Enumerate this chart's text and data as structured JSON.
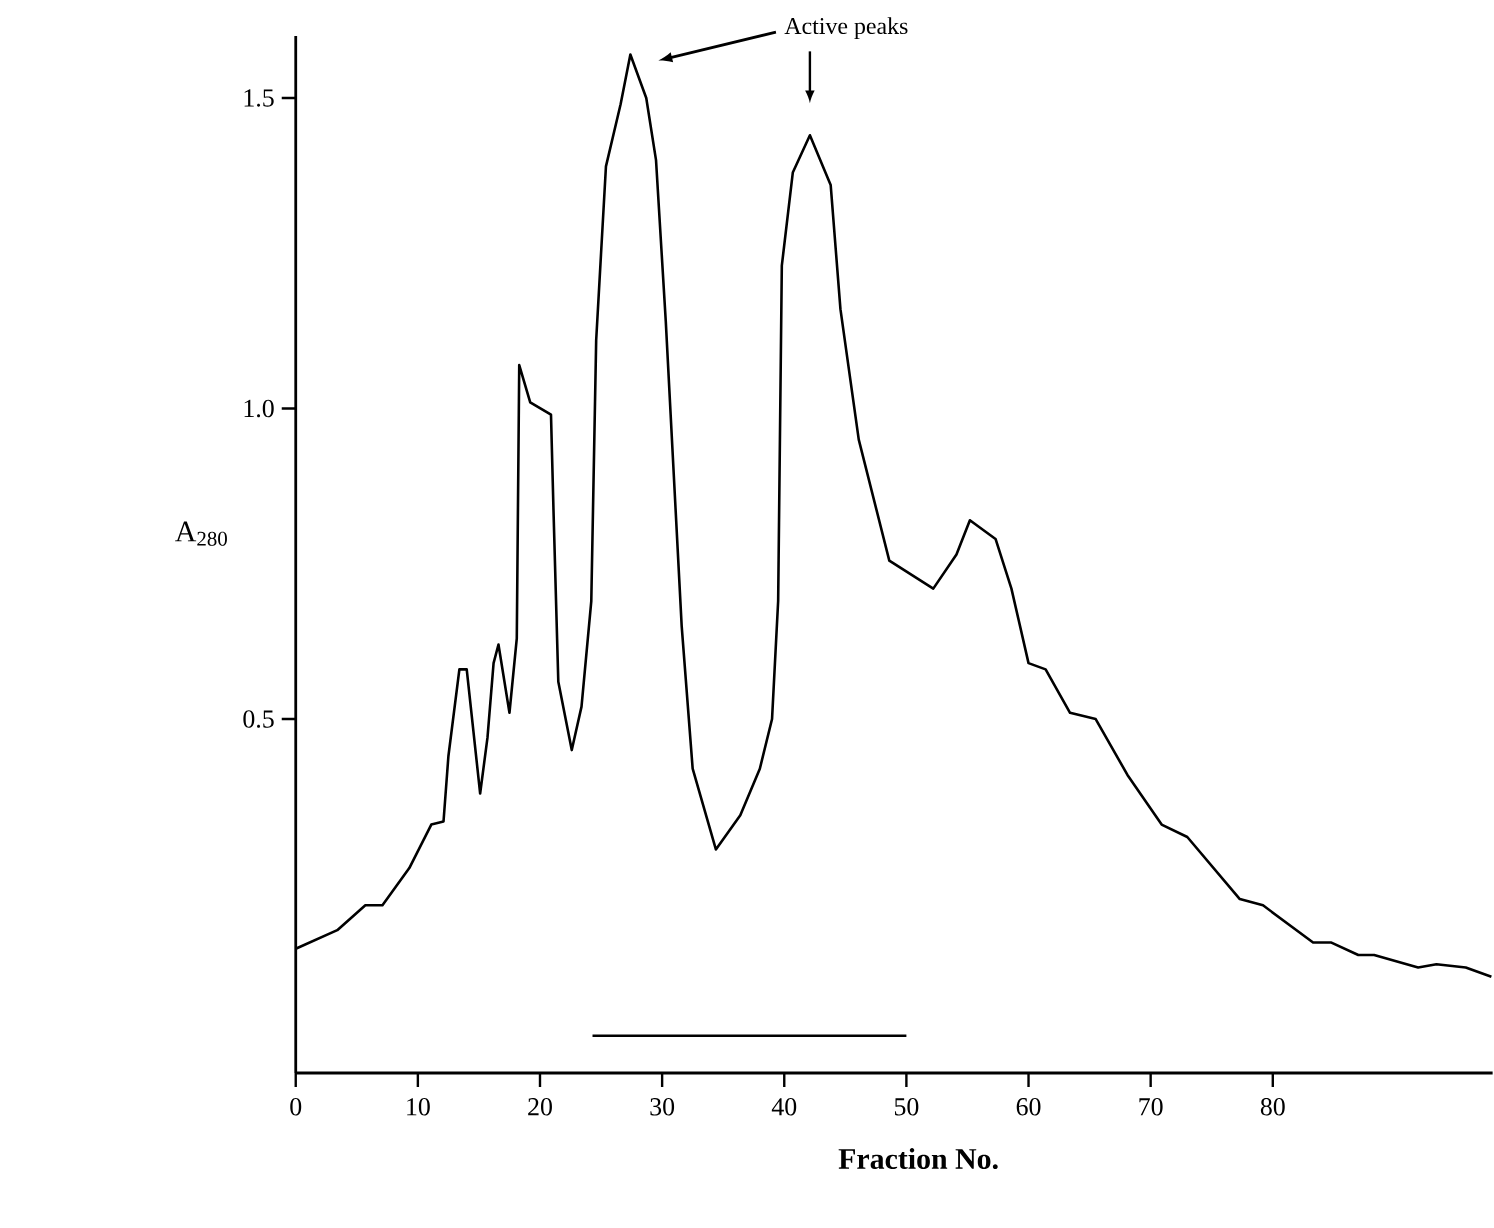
{
  "chart_data": {
    "type": "line",
    "xlabel": "**Fraction No.**",
    "ylabel": "A$_{280}$",
    "xlim": [
      0,
      98
    ],
    "ylim": [
      -0.07,
      1.6
    ],
    "xticks": [
      0,
      10,
      20,
      30,
      40,
      50,
      60,
      70,
      80
    ],
    "yticks": [
      0.5,
      {
        "value": 1,
        "label": "1.0"
      },
      1.5
    ],
    "grid": false,
    "marker": "none",
    "line_style": "solid",
    "annotations": [
      "Active peaks"
    ],
    "series": [
      {
        "color": "#000000",
        "x": [
          0,
          3.4,
          5.7,
          7.1,
          9.3,
          11.1,
          12.1,
          12.5,
          13.4,
          14.0,
          15.1,
          15.7,
          16.2,
          16.6,
          17.5,
          18.1,
          18.3,
          19.2,
          20.9,
          21.1,
          21.5,
          22.6,
          23.4,
          24.2,
          24.6,
          25.4,
          26.6,
          27.4,
          28.7,
          29.5,
          30.3,
          31.6,
          32.5,
          34.4,
          36.4,
          38.0,
          39.0,
          39.5,
          39.8,
          40.7,
          42.1,
          43.8,
          44.6,
          46.1,
          48.6,
          52.2,
          54.1,
          55.2,
          57.3,
          58.6,
          60.0,
          61.4,
          63.4,
          65.5,
          68.1,
          70.9,
          73.0,
          77.3,
          79.2,
          83.3,
          84.8,
          87.0,
          88.3,
          91.9,
          93.4,
          95.8,
          97.9
        ],
        "values": [
          0.13,
          0.16,
          0.2,
          0.2,
          0.26,
          0.33,
          0.335,
          0.44,
          0.58,
          0.58,
          0.38,
          0.47,
          0.59,
          0.62,
          0.51,
          0.63,
          1.07,
          1.01,
          0.99,
          0.84,
          0.56,
          0.45,
          0.52,
          0.69,
          1.11,
          1.39,
          1.49,
          1.57,
          1.5,
          1.4,
          1.14,
          0.65,
          0.42,
          0.29,
          0.345,
          0.42,
          0.5,
          0.69,
          1.23,
          1.38,
          1.44,
          1.36,
          1.16,
          0.95,
          0.755,
          0.71,
          0.765,
          0.82,
          0.79,
          0.71,
          0.59,
          0.58,
          0.51,
          0.5,
          0.41,
          0.33,
          0.31,
          0.21,
          0.2,
          0.14,
          0.14,
          0.12,
          0.12,
          0.1,
          0.105,
          0.1,
          0.085
        ]
      },
      {
        "color": "#000000",
        "x": [
          24.3,
          50
        ],
        "values": [
          -0.01,
          -0.01
        ]
      }
    ]
  }
}
